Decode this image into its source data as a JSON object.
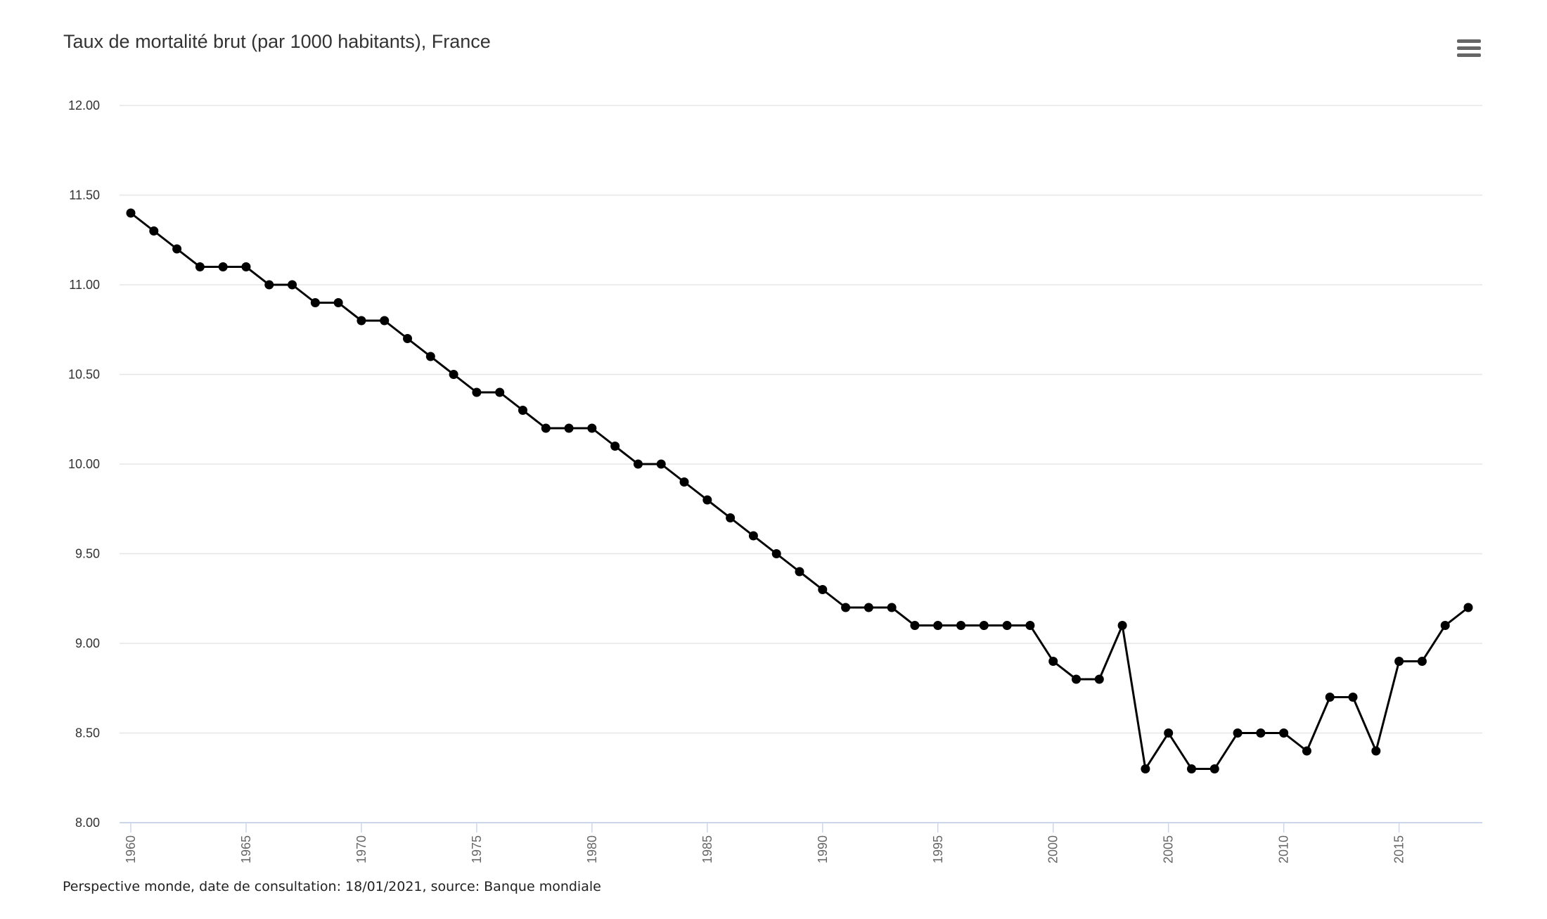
{
  "chart_data": {
    "type": "line",
    "title": "Taux de mortalité brut (par 1000 habitants), France",
    "xlabel": "",
    "ylabel": "",
    "ylim": [
      8,
      12
    ],
    "yticks": [
      "8.00",
      "8.50",
      "9.00",
      "9.50",
      "10.00",
      "10.50",
      "11.00",
      "11.50",
      "12.00"
    ],
    "xticks": [
      "1960",
      "1965",
      "1970",
      "1975",
      "1980",
      "1985",
      "1990",
      "1995",
      "2000",
      "2005",
      "2010",
      "2015"
    ],
    "grid": true,
    "series": [
      {
        "name": "France",
        "color": "#000000",
        "x": [
          1960,
          1961,
          1962,
          1963,
          1964,
          1965,
          1966,
          1967,
          1968,
          1969,
          1970,
          1971,
          1972,
          1973,
          1974,
          1975,
          1976,
          1977,
          1978,
          1979,
          1980,
          1981,
          1982,
          1983,
          1984,
          1985,
          1986,
          1987,
          1988,
          1989,
          1990,
          1991,
          1992,
          1993,
          1994,
          1995,
          1996,
          1997,
          1998,
          1999,
          2000,
          2001,
          2002,
          2003,
          2004,
          2005,
          2006,
          2007,
          2008,
          2009,
          2010,
          2011,
          2012,
          2013,
          2014,
          2015,
          2016,
          2017,
          2018
        ],
        "values": [
          11.4,
          11.3,
          11.2,
          11.1,
          11.1,
          11.1,
          11.0,
          11.0,
          10.9,
          10.9,
          10.8,
          10.8,
          10.7,
          10.6,
          10.5,
          10.4,
          10.4,
          10.3,
          10.2,
          10.2,
          10.2,
          10.1,
          10.0,
          10.0,
          9.9,
          9.8,
          9.7,
          9.6,
          9.5,
          9.4,
          9.3,
          9.2,
          9.2,
          9.2,
          9.1,
          9.1,
          9.1,
          9.1,
          9.1,
          9.1,
          8.9,
          8.8,
          8.8,
          9.1,
          8.3,
          8.5,
          8.3,
          8.3,
          8.5,
          8.5,
          8.5,
          8.4,
          8.7,
          8.7,
          8.4,
          8.9,
          8.9,
          9.1,
          9.2
        ]
      }
    ]
  },
  "footer": "Perspective monde, date de consultation: 18/01/2021, source: Banque mondiale"
}
